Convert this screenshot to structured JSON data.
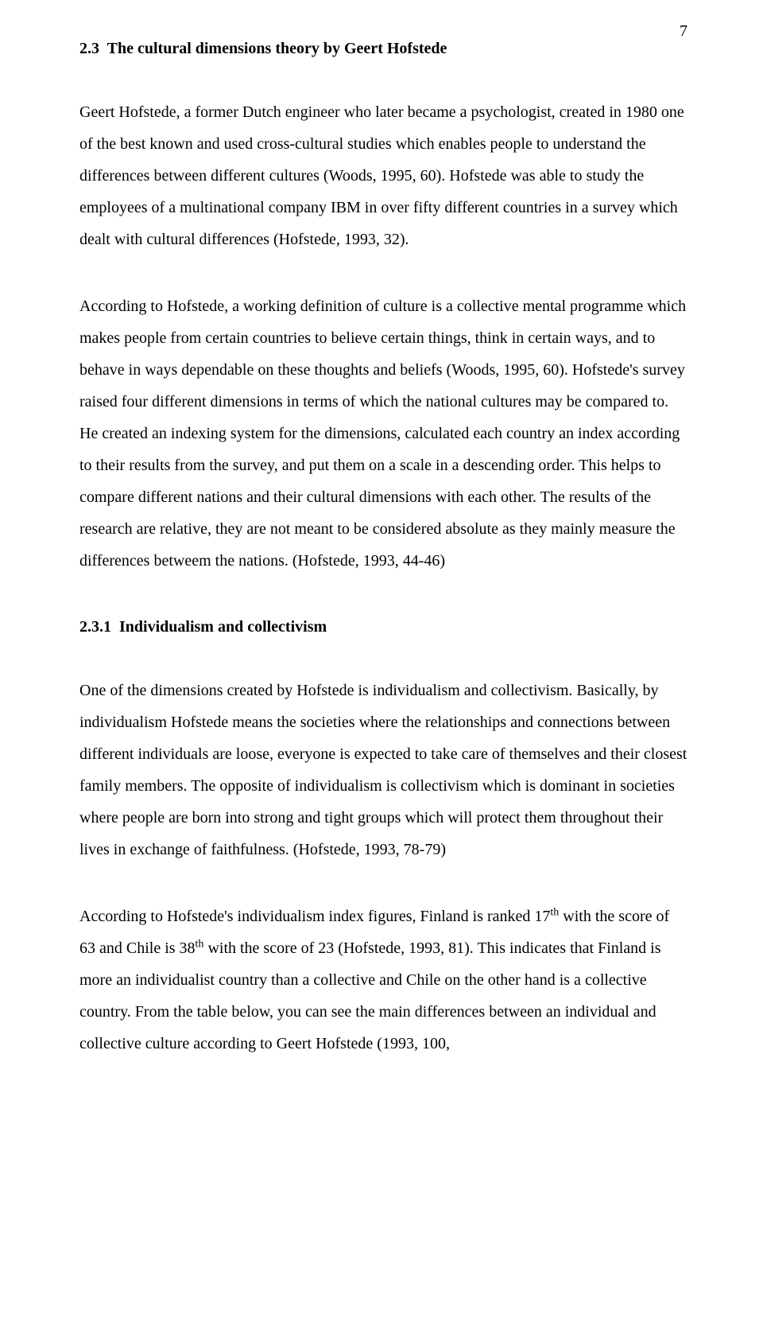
{
  "page": {
    "number": "7"
  },
  "heading1": {
    "number": "2.3",
    "title": "The cultural dimensions theory by Geert Hofstede"
  },
  "para1": "Geert Hofstede, a former Dutch engineer who later became a psychologist, created in 1980 one of the best known and used cross-cultural studies which enables people to understand the differences between different cultures (Woods, 1995, 60). Hofstede was able to study the employees of a multinational company IBM in over fifty different countries in a survey which dealt with cultural differences (Hofstede, 1993, 32).",
  "para2": "According to Hofstede, a working definition of culture is a collective mental programme which makes people from certain countries to believe certain things, think in certain ways, and to behave in ways dependable on these thoughts and beliefs (Woods, 1995, 60). Hofstede's survey raised four different dimensions in terms of which the national cultures may be compared to. He created an indexing system for the dimensions, calculated each country an index according to their results from the survey, and put them on a scale in a descending order. This helps to compare different nations and their cultural dimensions with each other. The results of the research are relative, they are not meant to be considered absolute as they mainly measure the differences betweem the nations. (Hofstede, 1993, 44-46)",
  "heading2": {
    "number": "2.3.1",
    "title": "Individualism and collectivism"
  },
  "para3": "One of the dimensions created by Hofstede is individualism and collectivism. Basically, by individualism Hofstede means the societies where the relationships and connections between different individuals are loose, everyone is expected to take care of themselves and their closest family members. The opposite of individualism is collectivism which is dominant in societies where people are born into strong and tight groups which will protect them throughout their lives in exchange of faithfulness. (Hofstede, 1993, 78-79)",
  "para4_a": "According to Hofstede's individualism index figures, Finland is ranked 17",
  "para4_sup1": "th",
  "para4_b": " with the score of 63 and Chile is 38",
  "para4_sup2": "th",
  "para4_c": " with the score of 23 (Hofstede, 1993, 81). This indicates that Finland is more an individualist country than a collective and Chile on the other hand is a collective country. From the table below, you can see the main differences between an individual and collective culture according to Geert Hofstede (1993, 100,"
}
